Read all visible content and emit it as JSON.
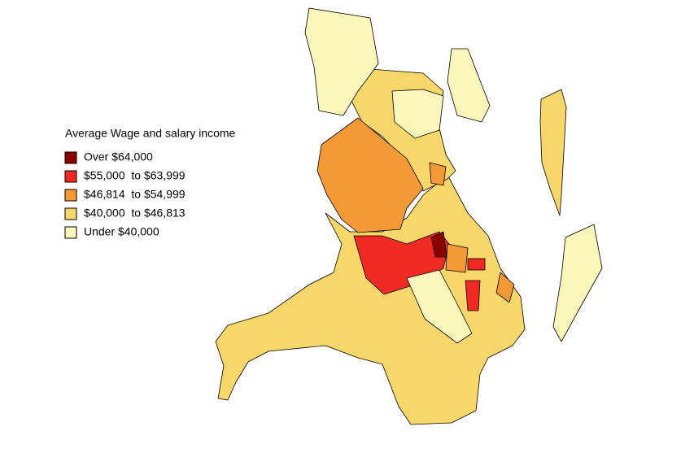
{
  "legend": {
    "title": "Average Wage and salary income",
    "items": [
      {
        "label": "Over $64,000",
        "color": "#8b0000"
      },
      {
        "label": "$55,000  to $63,999",
        "color": "#ef2a22"
      },
      {
        "label": "$46,814  to $54,999",
        "color": "#f39a36"
      },
      {
        "label": "$40,000  to $46,813",
        "color": "#f8d76a"
      },
      {
        "label": "Under $40,000",
        "color": "#fbf7bb"
      }
    ]
  }
}
